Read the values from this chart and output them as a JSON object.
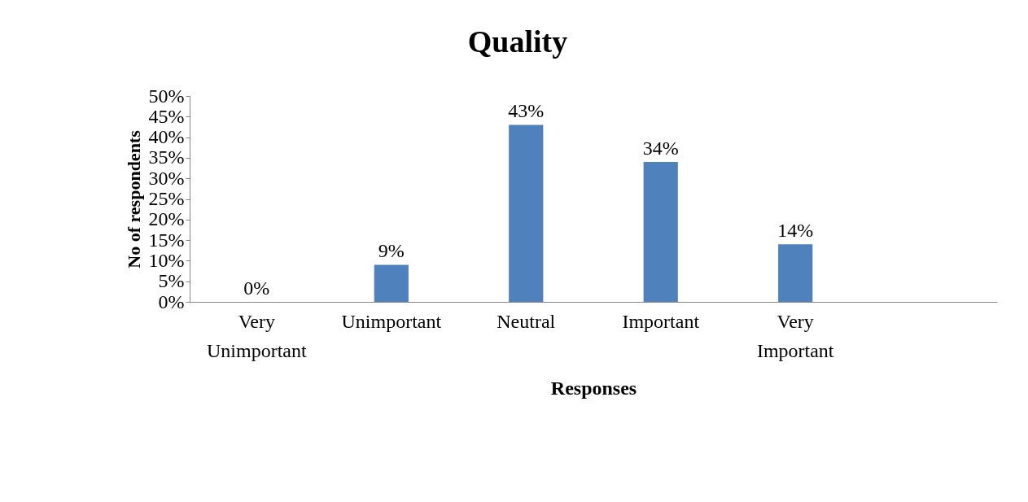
{
  "chart_data": {
    "type": "bar",
    "title": "Quality",
    "xlabel": "Responses",
    "ylabel": "No of respondents",
    "categories": [
      "Very Unimportant",
      "Unimportant",
      "Neutral",
      "Important",
      "Very Important",
      null
    ],
    "values": [
      0,
      9,
      43,
      34,
      14,
      null
    ],
    "value_labels": [
      "0%",
      "9%",
      "43%",
      "34%",
      "14%",
      null
    ],
    "color": "#4f81bd",
    "ylim": [
      0,
      50
    ],
    "yticks": [
      {
        "value": 0,
        "label": "0%"
      },
      {
        "value": 5,
        "label": "5%"
      },
      {
        "value": 10,
        "label": "10%"
      },
      {
        "value": 15,
        "label": "15%"
      },
      {
        "value": 20,
        "label": "20%"
      },
      {
        "value": 25,
        "label": "25%"
      },
      {
        "value": 30,
        "label": "30%"
      },
      {
        "value": 35,
        "label": "35%"
      },
      {
        "value": 40,
        "label": "40%"
      },
      {
        "value": 45,
        "label": "45%"
      },
      {
        "value": 50,
        "label": "50%"
      }
    ],
    "grid": false
  }
}
